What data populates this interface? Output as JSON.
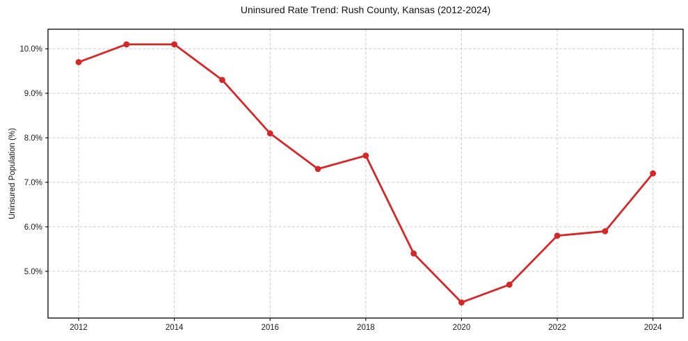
{
  "chart_data": {
    "type": "line",
    "title": "Uninsured Rate Trend: Rush County, Kansas (2012-2024)",
    "xlabel": "",
    "ylabel": "Uninsured Population (%)",
    "x": [
      2012,
      2013,
      2014,
      2015,
      2016,
      2017,
      2018,
      2019,
      2020,
      2021,
      2022,
      2023,
      2024
    ],
    "series": [
      {
        "name": "Uninsured Rate",
        "values": [
          9.7,
          10.1,
          10.1,
          9.3,
          8.1,
          7.3,
          7.6,
          5.4,
          4.3,
          4.7,
          5.8,
          5.9,
          7.2
        ],
        "color": "#d62728",
        "marker": "circle",
        "line_width": 2.8,
        "marker_radius": 4.4
      }
    ],
    "xticks": {
      "values": [
        2012,
        2014,
        2016,
        2018,
        2020,
        2022,
        2024
      ],
      "labels": [
        "2012",
        "2014",
        "2016",
        "2018",
        "2020",
        "2022",
        "2024"
      ]
    },
    "yticks": {
      "values": [
        5,
        6,
        7,
        8,
        9,
        10
      ],
      "labels": [
        "5.0%",
        "6.0%",
        "7.0%",
        "8.0%",
        "9.0%",
        "10.0%"
      ]
    },
    "xlim": [
      2011.36,
      2024.63
    ],
    "ylim": [
      3.95,
      10.44
    ],
    "grid": true,
    "grid_style": "dashed",
    "legend": null
  },
  "colors": {
    "line": "#d62728",
    "grid": "#cccccc",
    "spine": "#000000",
    "text": "#1a1a1a",
    "background": "#ffffff"
  }
}
